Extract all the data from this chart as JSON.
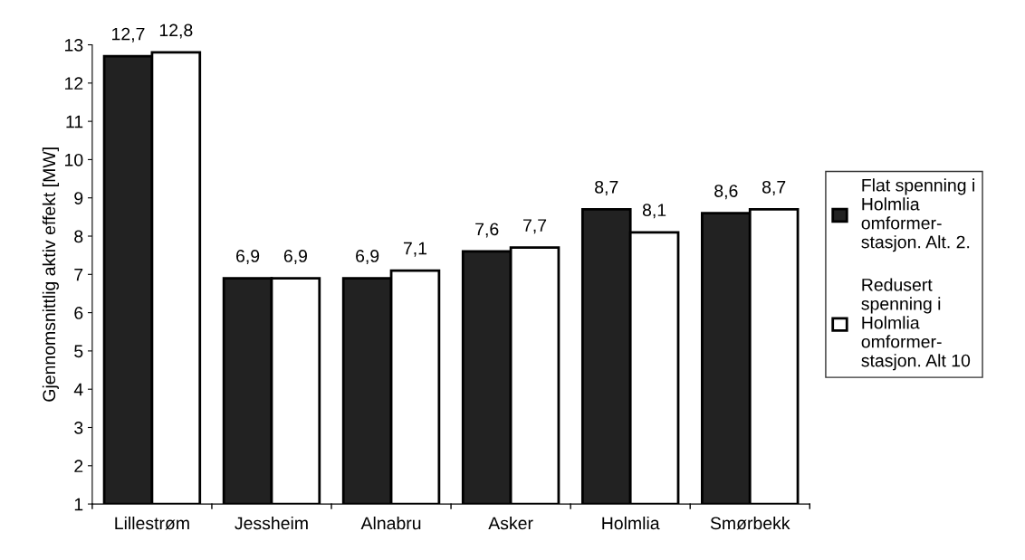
{
  "chart_data": {
    "type": "bar",
    "ylabel": "Gjennomsnittlig aktiv effekt [MW]",
    "categories": [
      "Lillestrøm",
      "Jessheim",
      "Alnabru",
      "Asker",
      "Holmlia",
      "Smørbekk"
    ],
    "series": [
      {
        "name": "Flat spenning i\nHolmlia\nomformer-\nstasjon. Alt. 2.",
        "color": "#222222",
        "values": [
          12.7,
          6.9,
          6.9,
          7.6,
          8.7,
          8.6
        ],
        "value_labels": [
          "12,7",
          "6,9",
          "6,9",
          "7,6",
          "8,7",
          "8,6"
        ]
      },
      {
        "name": "Redusert\nspenning i\nHolmlia\nomformer-\nstasjon. Alt 10",
        "color": "#ffffff",
        "values": [
          12.8,
          6.9,
          7.1,
          7.7,
          8.1,
          8.7
        ],
        "value_labels": [
          "12,8",
          "6,9",
          "7,1",
          "7,7",
          "8,1",
          "8,7"
        ]
      }
    ],
    "ylim": [
      1,
      13
    ],
    "yticks": [
      1,
      2,
      3,
      4,
      5,
      6,
      7,
      8,
      9,
      10,
      11,
      12,
      13
    ],
    "grid": false,
    "legend": "right"
  }
}
